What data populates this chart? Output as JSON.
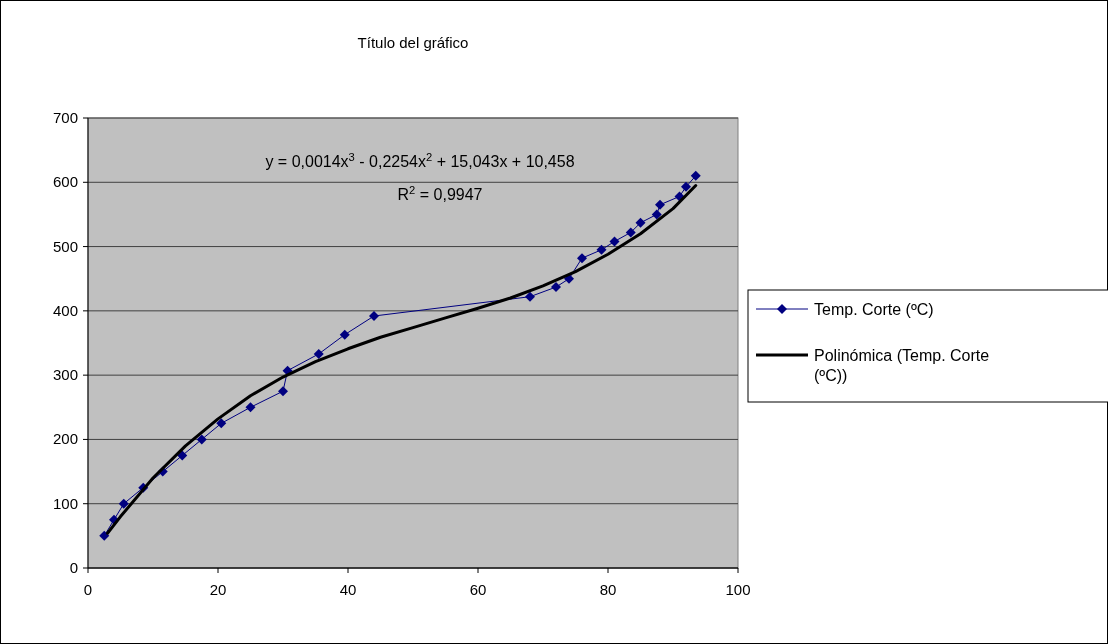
{
  "chart_data": {
    "type": "line",
    "title": "Título del gráfico",
    "x": [
      2.5,
      4,
      5.5,
      8.5,
      11.5,
      14.5,
      17.5,
      20.5,
      25,
      30,
      30.7,
      35.5,
      39.5,
      44,
      68,
      72,
      74,
      76,
      79,
      81,
      83.5,
      85,
      87.5,
      88,
      91,
      92,
      93.5
    ],
    "series": [
      {
        "name": "Temp. Corte (ºC)",
        "color": "#000080",
        "marker": "diamond",
        "values": [
          50,
          75,
          100,
          125,
          150,
          175,
          200,
          225,
          250,
          275,
          307,
          333,
          363,
          392,
          422,
          437,
          450,
          482,
          495,
          508,
          522,
          537,
          550,
          565,
          578,
          593,
          610
        ]
      },
      {
        "name": "Polinómica (Temp. Corte (ºC))",
        "color": "#000000",
        "marker": "none",
        "x": [
          3,
          5,
          10,
          15,
          20,
          25,
          30,
          35,
          40,
          45,
          50,
          55,
          60,
          65,
          70,
          75,
          80,
          85,
          90,
          93.5
        ],
        "values": [
          54,
          80,
          140,
          190,
          232,
          268,
          297,
          321,
          341,
          359,
          374,
          389,
          404,
          420,
          439,
          461,
          488,
          520,
          559,
          595
        ]
      }
    ],
    "xlim": [
      0,
      100
    ],
    "xticks": [
      0,
      20,
      40,
      60,
      80,
      100
    ],
    "ylim": [
      0,
      700
    ],
    "yticks": [
      0,
      100,
      200,
      300,
      400,
      500,
      600,
      700
    ],
    "grid": "y",
    "legend": "right",
    "line_style": "solid",
    "annotations": [
      "y = 0,0014x$^{3}$ - 0,2254x$^{2}$ + 15,043x + 10,458",
      "R$^{2}$ = 0,9947"
    ]
  }
}
